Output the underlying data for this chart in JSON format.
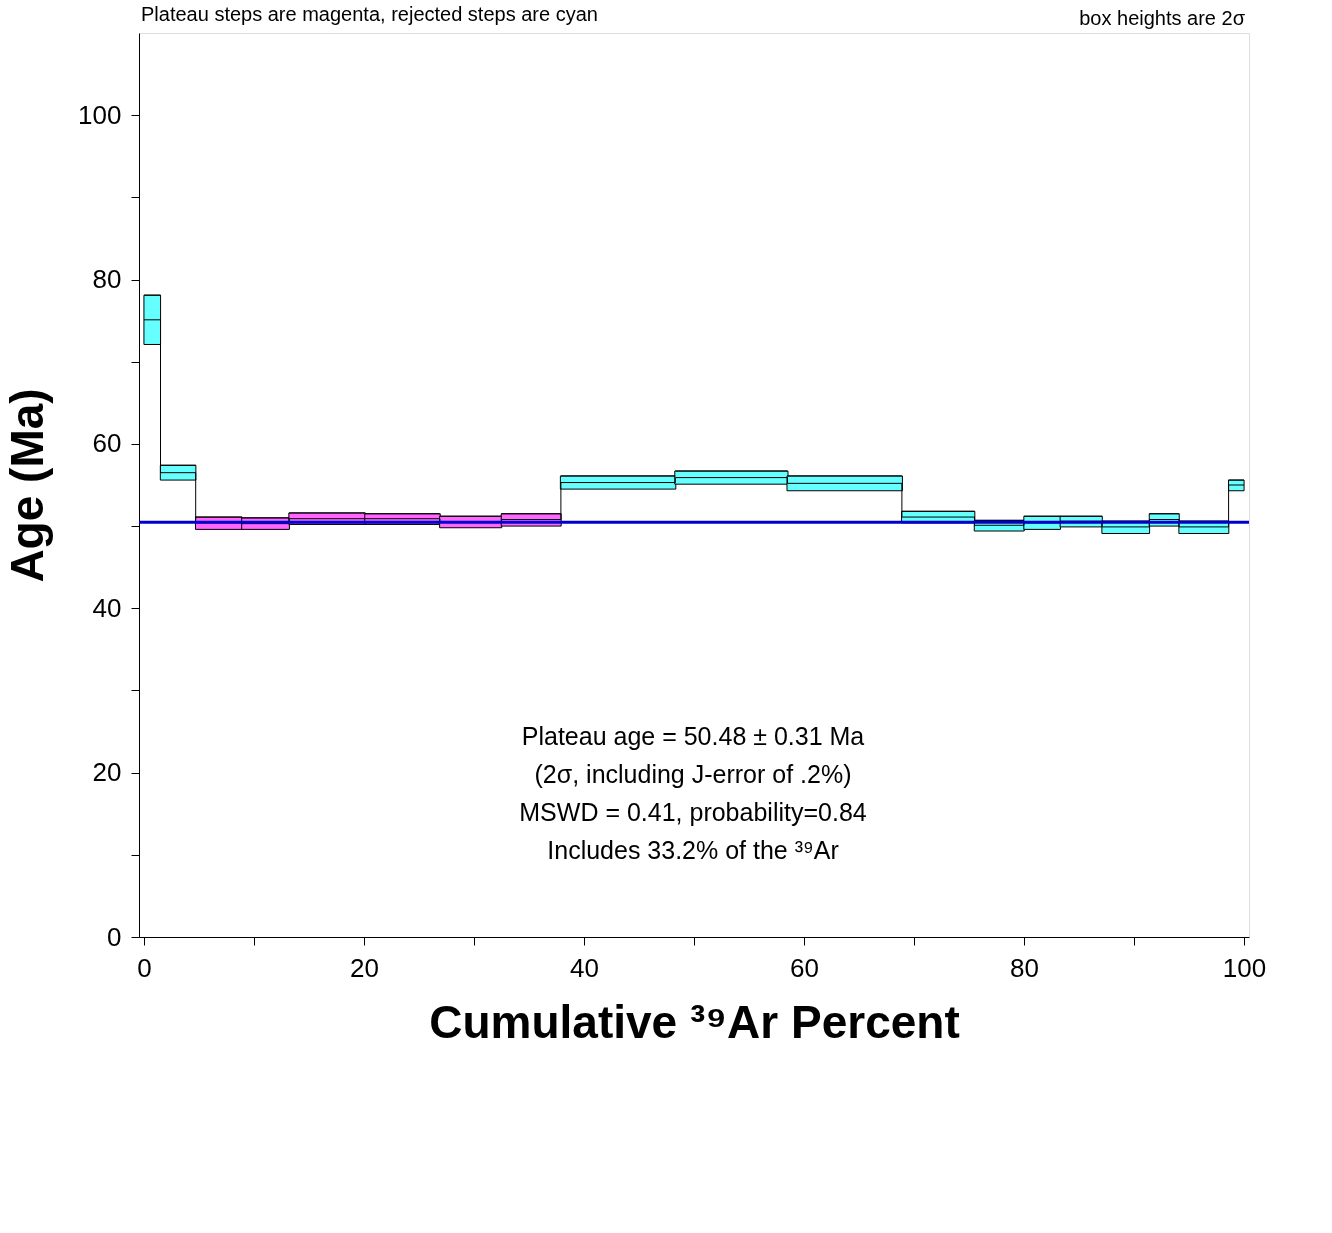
{
  "chart_data": {
    "type": "bar",
    "xlabel": "Cumulative ³⁹Ar Percent",
    "ylabel": "Age (Ma)",
    "xlim": [
      0,
      100
    ],
    "ylim": [
      0,
      110
    ],
    "xticks": [
      0,
      {
        "value": 10,
        "label": null
      },
      20,
      {
        "value": 30,
        "label": null
      },
      40,
      {
        "value": 50,
        "label": null
      },
      60,
      {
        "value": 70,
        "label": null
      },
      80,
      {
        "value": 90,
        "label": null
      },
      100
    ],
    "yticks": [
      0,
      {
        "value": 10,
        "label": null
      },
      20,
      {
        "value": 30,
        "label": null
      },
      40,
      {
        "value": 50,
        "label": null
      },
      60,
      {
        "value": 70,
        "label": null
      },
      80,
      {
        "value": 90,
        "label": null
      },
      100
    ],
    "grid": false,
    "legend": false,
    "series": [
      {
        "color": "#ff66ff",
        "x": [
          6.8,
          11.05,
          16.65,
          23.5,
          29.7,
          35.2
        ],
        "xerrors": [
          [
            4.7,
            8.9
          ],
          [
            8.9,
            13.2
          ],
          [
            13.2,
            20.1
          ],
          [
            20.1,
            26.9
          ],
          [
            26.9,
            32.5
          ],
          [
            32.5,
            37.9
          ]
        ],
        "base": [
          49.6,
          49.6,
          50.2,
          50.2,
          49.8,
          50.0
        ],
        "values": [
          1.5,
          1.4,
          1.4,
          1.3,
          1.4,
          1.5
        ]
      },
      {
        "color": "#66ffff",
        "x": [
          0.75,
          3.1,
          43.1,
          53.4,
          63.7,
          72.2,
          77.75,
          81.65,
          85.2,
          89.25,
          92.75,
          96.35,
          99.3
        ],
        "xerrors": [
          [
            0,
            1.5
          ],
          [
            1.5,
            4.7
          ],
          [
            37.9,
            48.3
          ],
          [
            48.3,
            58.5
          ],
          [
            58.5,
            68.9
          ],
          [
            68.9,
            75.5
          ],
          [
            75.5,
            80.0
          ],
          [
            80.0,
            83.3
          ],
          [
            83.3,
            87.1
          ],
          [
            87.1,
            91.4
          ],
          [
            91.4,
            94.1
          ],
          [
            94.1,
            98.6
          ],
          [
            98.6,
            100
          ]
        ],
        "base": [
          72.1,
          55.6,
          54.5,
          55.1,
          54.3,
          50.4,
          49.4,
          49.6,
          49.9,
          49.1,
          50.0,
          49.1,
          54.3
        ],
        "values": [
          6.0,
          1.8,
          1.6,
          1.6,
          1.8,
          1.4,
          1.3,
          1.6,
          1.3,
          1.5,
          1.5,
          1.5,
          1.3
        ]
      },
      {
        "type": "step",
        "color": "#000000",
        "x": [
          0,
          1.5,
          4.7,
          8.9,
          13.2,
          20.1,
          26.9,
          32.5,
          37.9,
          48.3,
          58.5,
          68.9,
          75.5,
          80.0,
          83.3,
          87.1,
          91.4,
          94.1,
          98.6,
          100
        ],
        "values": [
          75.1,
          56.5,
          50.4,
          50.3,
          50.9,
          50.9,
          50.5,
          50.8,
          55.3,
          55.9,
          55.2,
          51.1,
          50.1,
          50.4,
          50.6,
          49.9,
          50.8,
          49.9,
          55.0,
          55.0
        ]
      }
    ],
    "ref_lines": [
      {
        "axis": "y",
        "value": 50.48,
        "color": "#0000cc"
      }
    ],
    "annotations": [
      "Plateau steps are magenta, rejected steps are cyan",
      "box heights are 2σ",
      "Plateau age = 50.48 ± 0.31 Ma",
      "(2σ, including J-error of .2%)",
      "MSWD = 0.41, probability=0.84",
      "Includes 33.2% of the ³⁹Ar"
    ]
  }
}
